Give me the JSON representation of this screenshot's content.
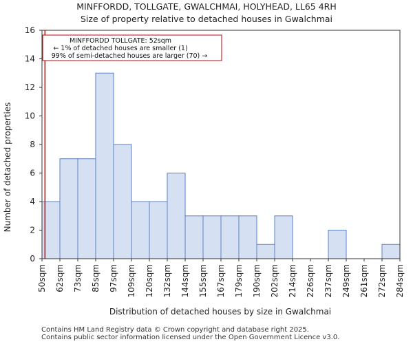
{
  "chart_data": {
    "type": "bar",
    "title": "MINFFORDD, TOLLGATE, GWALCHMAI, HOLYHEAD, LL65 4RH",
    "subtitle": "Size of property relative to detached houses in Gwalchmai",
    "xlabel": "Distribution of detached houses by size in Gwalchmai",
    "ylabel": "Number of detached properties",
    "bin_edges": [
      "50sqm",
      "62sqm",
      "73sqm",
      "85sqm",
      "97sqm",
      "109sqm",
      "120sqm",
      "132sqm",
      "144sqm",
      "155sqm",
      "167sqm",
      "179sqm",
      "190sqm",
      "202sqm",
      "214sqm",
      "226sqm",
      "237sqm",
      "249sqm",
      "261sqm",
      "272sqm",
      "284sqm"
    ],
    "values": [
      4,
      7,
      7,
      13,
      8,
      4,
      4,
      6,
      3,
      3,
      3,
      3,
      1,
      3,
      0,
      0,
      2,
      0,
      0,
      1
    ],
    "ylim": [
      0,
      16
    ],
    "yticks": [
      0,
      2,
      4,
      6,
      8,
      10,
      12,
      14,
      16
    ],
    "grid": false,
    "marker": {
      "value_sqm": 52,
      "color": "#cc0000",
      "annotation_lines": [
        "MINFFORDD TOLLGATE: 52sqm",
        "← 1% of detached houses are smaller (1)",
        "99% of semi-detached houses are larger (70) →"
      ]
    },
    "colors": {
      "bar_fill": "#d6e0f3",
      "bar_edge": "#5a7fc4",
      "marker": "#cc0000"
    }
  },
  "footer": {
    "line1": "Contains HM Land Registry data © Crown copyright and database right 2025.",
    "line2": "Contains public sector information licensed under the Open Government Licence v3.0."
  }
}
